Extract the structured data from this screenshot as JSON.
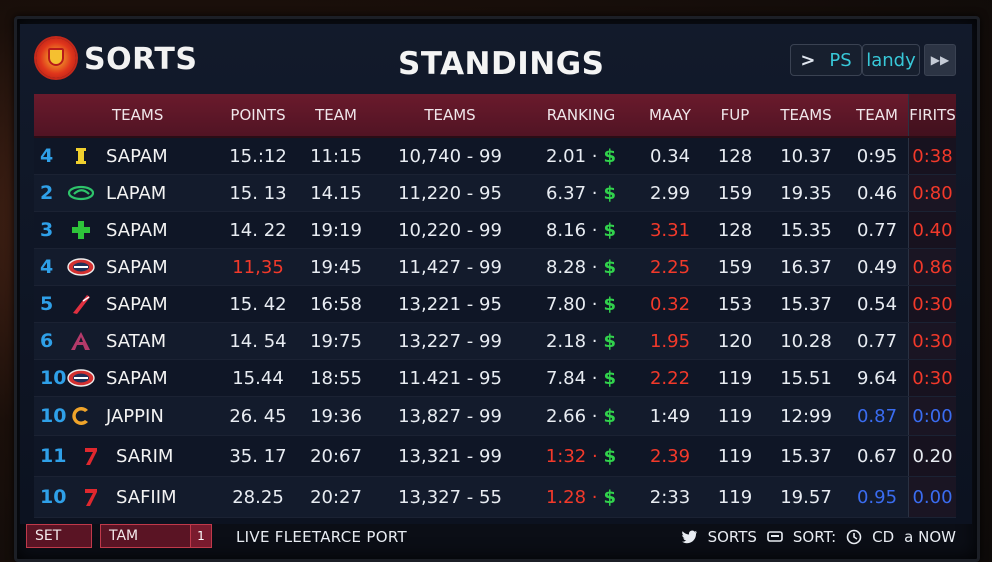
{
  "header": {
    "brand": "SORTS",
    "title": "STANDINGS",
    "ps_label": "PS",
    "landy_label": "landy",
    "end_label": "▶▶"
  },
  "columns": [
    "TEAMS",
    "POINTS",
    "TEAM",
    "TEAMS",
    "RANKING",
    "MAAY",
    "FUP",
    "TEAMS",
    "TEAM",
    "FIRITS"
  ],
  "rows": [
    {
      "rank": "4",
      "logo": "yellow-bar",
      "team": "SAPAM",
      "points": "15.:12",
      "time": "11:15",
      "teams": "10,740 - 99",
      "ranking": "2.01 ·",
      "maay": "0.34",
      "fup": "128",
      "teams2": "10.37",
      "team2": "0:95",
      "firits": "0:38"
    },
    {
      "rank": "2",
      "logo": "green-swoosh",
      "team": "LAPAM",
      "points": "15. 13",
      "time": "14.15",
      "teams": "11,220 - 95",
      "ranking": "6.37 ·",
      "maay": "2.99",
      "fup": "159",
      "teams2": "19.35",
      "team2": "0.46",
      "firits": "0:80"
    },
    {
      "rank": "3",
      "logo": "green-cross",
      "team": "SAPAM",
      "points": "14. 22",
      "time": "19:19",
      "teams": "10,220 - 99",
      "ranking": "8.16 ·",
      "maay": "3.31",
      "fup": "128",
      "teams2": "15.35",
      "team2": "0.77",
      "firits": "0.40"
    },
    {
      "rank": "4",
      "logo": "oval-badge",
      "team": "SAPAM",
      "points": "11,35",
      "time": "19:45",
      "teams": "11,427 - 99",
      "ranking": "8.28 ·",
      "maay": "2.25",
      "fup": "159",
      "teams2": "16.37",
      "team2": "0.49",
      "firits": "0.86"
    },
    {
      "rank": "5",
      "logo": "red-stripe",
      "team": "SAPAM",
      "points": "15. 42",
      "time": "16:58",
      "teams": "13,221 - 95",
      "ranking": "7.80 ·",
      "maay": "0.32",
      "fup": "153",
      "teams2": "15.37",
      "team2": "0.54",
      "firits": "0:30"
    },
    {
      "rank": "6",
      "logo": "letter-a",
      "team": "SATAM",
      "points": "14. 54",
      "time": "19:75",
      "teams": "13,227 - 99",
      "ranking": "2.18 ·",
      "maay": "1.95",
      "fup": "120",
      "teams2": "10.28",
      "team2": "0.77",
      "firits": "0:30"
    },
    {
      "rank": "10",
      "logo": "oval-badge",
      "team": "SAPAM",
      "points": "15.44",
      "time": "18:55",
      "teams": "11.421 - 95",
      "ranking": "7.84 ·",
      "maay": "2.22",
      "fup": "119",
      "teams2": "15.51",
      "team2": "9.64",
      "firits": "0:30"
    },
    {
      "rank": "10",
      "logo": "letter-c",
      "team": "JAPPIN",
      "points": "26. 45",
      "time": "19:36",
      "teams": "13,827 - 99",
      "ranking": "2.66 ·",
      "maay": "1:49",
      "fup": "119",
      "teams2": "12:99",
      "team2": "0.87",
      "firits": "0:00"
    },
    {
      "rank": "11",
      "logo": "red-7",
      "team": "SARIM",
      "points": "35. 17",
      "time": "20:67",
      "teams": "13,321 - 99",
      "ranking": "1:32 ·",
      "maay": "2.39",
      "fup": "119",
      "teams2": "15.37",
      "team2": "0.67",
      "firits": "0.20"
    },
    {
      "rank": "10",
      "logo": "red-7",
      "team": "SAFIIM",
      "points": "28.25",
      "time": "20:27",
      "teams": "13,327 - 55",
      "ranking": "1.28 ·",
      "maay": "2:33",
      "fup": "119",
      "teams2": "19.57",
      "team2": "0.95",
      "firits": "0.00"
    }
  ],
  "footer": {
    "set_label": "SET",
    "tam_label": "TAM",
    "tam_count": "1",
    "live_text": "LIVE FLEETARCE PORT",
    "sorts_label": "SORTS",
    "sort_label": "SORT:",
    "cd_label": "CD",
    "now_label": "a NOW"
  },
  "colors": {
    "header_bar": "#5e1728",
    "rank_blue": "#2fa0e8",
    "money_green": "#31d24c",
    "alert_red": "#f2392a",
    "value_blue": "#3a6cf0"
  }
}
